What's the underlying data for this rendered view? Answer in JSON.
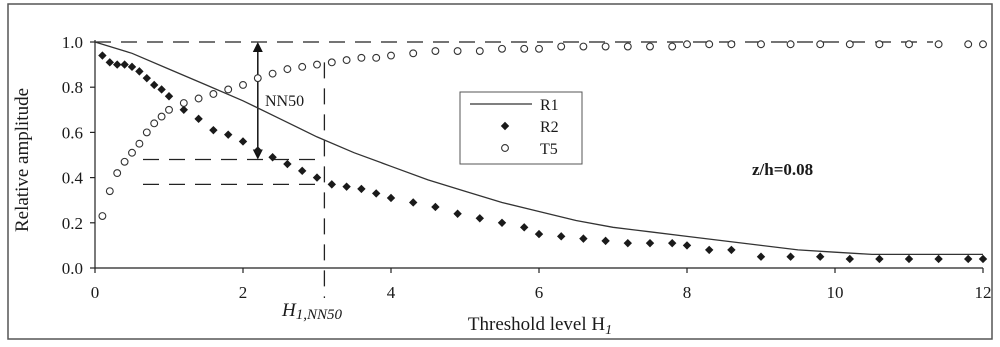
{
  "chart_data": {
    "type": "scatter",
    "xlabel": "Threshold level H",
    "xlabel_sub": "1",
    "ylabel": "Relative amplitude",
    "xlim": [
      0,
      12
    ],
    "ylim": [
      0,
      1.0
    ],
    "xticks": [
      "0",
      "2",
      "4",
      "6",
      "8",
      "10",
      "12"
    ],
    "yticks": [
      "0.0",
      "0.2",
      "0.4",
      "0.6",
      "0.8",
      "1.0"
    ],
    "grid": false,
    "legend_position": "center",
    "annotation_text": "z/h=0.08",
    "nn50_label": "NN50",
    "h1_label": "H",
    "h1_sub": "1,NN50",
    "h1_value": 3.1,
    "nn50_top": 1.0,
    "nn50_bottom": 0.48,
    "r2_at_h1": 0.37,
    "t5_at_h1": 0.91,
    "series": [
      {
        "name": "R1",
        "style": "line",
        "x": [
          0,
          0.5,
          1,
          1.5,
          2,
          2.5,
          3,
          3.5,
          4,
          4.5,
          5,
          5.5,
          6,
          6.5,
          7,
          7.5,
          8,
          8.5,
          9,
          9.5,
          10,
          10.5,
          11,
          11.5,
          12
        ],
        "y": [
          1.0,
          0.95,
          0.88,
          0.81,
          0.74,
          0.66,
          0.58,
          0.51,
          0.45,
          0.39,
          0.34,
          0.29,
          0.25,
          0.21,
          0.18,
          0.16,
          0.14,
          0.12,
          0.1,
          0.08,
          0.07,
          0.06,
          0.06,
          0.06,
          0.06
        ]
      },
      {
        "name": "R2",
        "style": "diamond",
        "x": [
          0.1,
          0.2,
          0.3,
          0.4,
          0.5,
          0.6,
          0.7,
          0.8,
          0.9,
          1.0,
          1.2,
          1.4,
          1.6,
          1.8,
          2.0,
          2.2,
          2.4,
          2.6,
          2.8,
          3.0,
          3.2,
          3.4,
          3.6,
          3.8,
          4.0,
          4.3,
          4.6,
          4.9,
          5.2,
          5.5,
          5.8,
          6.0,
          6.3,
          6.6,
          6.9,
          7.2,
          7.5,
          7.8,
          8.0,
          8.3,
          8.6,
          9.0,
          9.4,
          9.8,
          10.2,
          10.6,
          11.0,
          11.4,
          11.8,
          12.0
        ],
        "y": [
          0.94,
          0.91,
          0.9,
          0.9,
          0.89,
          0.87,
          0.84,
          0.81,
          0.79,
          0.76,
          0.7,
          0.66,
          0.61,
          0.59,
          0.56,
          0.52,
          0.49,
          0.46,
          0.43,
          0.4,
          0.37,
          0.36,
          0.35,
          0.33,
          0.31,
          0.29,
          0.27,
          0.24,
          0.22,
          0.2,
          0.18,
          0.15,
          0.14,
          0.13,
          0.12,
          0.11,
          0.11,
          0.11,
          0.1,
          0.08,
          0.08,
          0.05,
          0.05,
          0.05,
          0.04,
          0.04,
          0.04,
          0.04,
          0.04,
          0.04
        ]
      },
      {
        "name": "T5",
        "style": "circle",
        "x": [
          0.1,
          0.2,
          0.3,
          0.4,
          0.5,
          0.6,
          0.7,
          0.8,
          0.9,
          1.0,
          1.2,
          1.4,
          1.6,
          1.8,
          2.0,
          2.2,
          2.4,
          2.6,
          2.8,
          3.0,
          3.2,
          3.4,
          3.6,
          3.8,
          4.0,
          4.3,
          4.6,
          4.9,
          5.2,
          5.5,
          5.8,
          6.0,
          6.3,
          6.6,
          6.9,
          7.2,
          7.5,
          7.8,
          8.0,
          8.3,
          8.6,
          9.0,
          9.4,
          9.8,
          10.2,
          10.6,
          11.0,
          11.4,
          11.8,
          12.0
        ],
        "y": [
          0.23,
          0.34,
          0.42,
          0.47,
          0.51,
          0.55,
          0.6,
          0.64,
          0.67,
          0.7,
          0.73,
          0.75,
          0.77,
          0.79,
          0.81,
          0.84,
          0.86,
          0.88,
          0.89,
          0.9,
          0.91,
          0.92,
          0.93,
          0.93,
          0.94,
          0.95,
          0.96,
          0.96,
          0.96,
          0.97,
          0.97,
          0.97,
          0.98,
          0.98,
          0.98,
          0.98,
          0.98,
          0.98,
          0.99,
          0.99,
          0.99,
          0.99,
          0.99,
          0.99,
          0.99,
          0.99,
          0.99,
          0.99,
          0.99,
          0.99
        ]
      }
    ]
  }
}
